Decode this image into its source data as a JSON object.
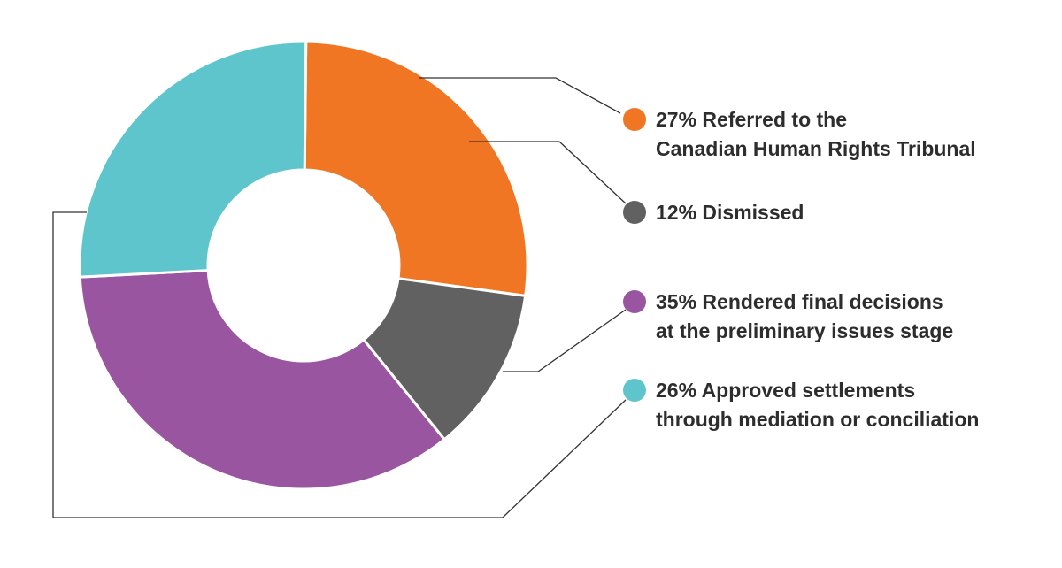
{
  "chart_data": {
    "type": "donut",
    "title": "",
    "slices": [
      {
        "name": "Referred to the Canadian Human Rights Tribunal",
        "value": 27,
        "color": "#f07623",
        "label_lines": [
          "27% Referred to the",
          "Canadian Human Rights Tribunal"
        ]
      },
      {
        "name": "Dismissed",
        "value": 12,
        "color": "#616161",
        "label_lines": [
          "12% Dismissed"
        ]
      },
      {
        "name": "Rendered final decisions at the preliminary issues stage",
        "value": 35,
        "color": "#9a55a0",
        "label_lines": [
          "35% Rendered final decisions",
          "at the preliminary issues stage"
        ]
      },
      {
        "name": "Approved settlements through mediation or conciliation",
        "value": 26,
        "color": "#5ec5cc",
        "label_lines": [
          "26% Approved settlements",
          "through mediation or conciliation"
        ]
      }
    ],
    "legend": "right",
    "leader_line_color": "#333333"
  }
}
